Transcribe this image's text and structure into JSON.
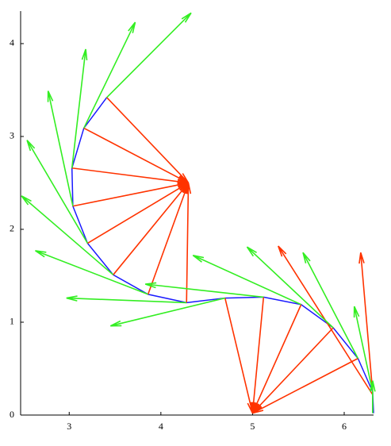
{
  "chart_data": {
    "type": "arrows",
    "xlim": [
      2.47,
      6.32
    ],
    "ylim": [
      0,
      4.35
    ],
    "xticks": [
      3,
      4,
      5,
      6
    ],
    "yticks": [
      0,
      1,
      2,
      3,
      4
    ],
    "curve": {
      "color": "#1a1aff",
      "x": [
        3.41,
        3.16,
        3.03,
        3.04,
        3.2,
        3.48,
        3.86,
        4.28,
        4.7,
        5.12,
        5.53,
        5.88,
        6.15,
        6.31,
        6.32
      ],
      "y": [
        3.42,
        3.09,
        2.66,
        2.25,
        1.85,
        1.51,
        1.3,
        1.21,
        1.26,
        1.27,
        1.19,
        0.94,
        0.61,
        0.25,
        0.02
      ]
    },
    "series": [
      {
        "color": "#ff3300",
        "x0": [
          3.41,
          3.16,
          3.03,
          3.04,
          3.2,
          3.48,
          3.86,
          4.28,
          4.7,
          5.12,
          5.53,
          5.88,
          6.15,
          6.31,
          6.31
        ],
        "y0": [
          3.42,
          3.09,
          2.66,
          2.25,
          1.85,
          1.51,
          1.3,
          1.21,
          1.26,
          1.27,
          1.19,
          0.94,
          0.61,
          0.25,
          0.22
        ],
        "x1": [
          4.3,
          4.3,
          4.3,
          4.3,
          4.3,
          4.3,
          4.3,
          4.3,
          5.0,
          5.0,
          5.0,
          5.0,
          5.0,
          6.18,
          5.28
        ],
        "y1": [
          2.5,
          2.5,
          2.5,
          2.5,
          2.5,
          2.5,
          2.5,
          2.5,
          0.02,
          0.02,
          0.02,
          0.02,
          0.02,
          1.75,
          1.82
        ]
      },
      {
        "color": "#33ee22",
        "x0": [
          3.41,
          3.16,
          3.03,
          3.04,
          3.2,
          3.48,
          3.86,
          4.28,
          4.7,
          5.12,
          5.53,
          5.88,
          6.15,
          6.31,
          6.31
        ],
        "y0": [
          3.42,
          3.09,
          2.66,
          2.25,
          1.85,
          1.51,
          1.3,
          1.21,
          1.26,
          1.27,
          1.19,
          0.94,
          0.61,
          0.25,
          0.02
        ],
        "x1": [
          4.33,
          3.72,
          3.18,
          2.77,
          2.54,
          2.48,
          2.63,
          2.97,
          3.45,
          3.83,
          4.35,
          4.94,
          5.55,
          6.11,
          6.31
        ],
        "y1": [
          4.33,
          4.23,
          3.94,
          3.49,
          2.96,
          2.36,
          1.77,
          1.26,
          0.96,
          1.41,
          1.72,
          1.81,
          1.75,
          1.17,
          0.37
        ]
      }
    ]
  }
}
